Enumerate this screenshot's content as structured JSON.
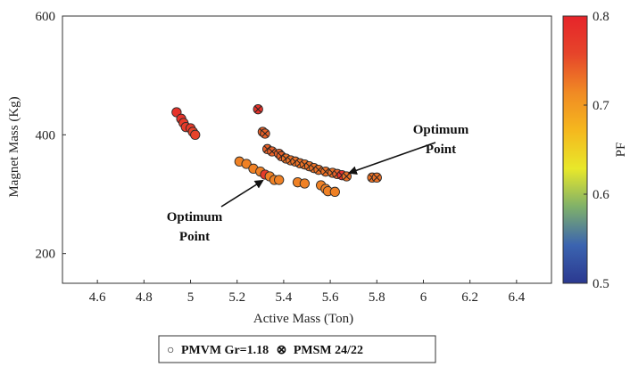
{
  "chart_data": {
    "type": "scatter",
    "xlabel": "Active Mass (Ton)",
    "ylabel": "Magnet  Mass (Kg)",
    "xlim": [
      4.45,
      6.55
    ],
    "ylim": [
      150,
      600
    ],
    "xticks": [
      4.6,
      4.8,
      5,
      5.2,
      5.4,
      5.6,
      5.8,
      6,
      6.2,
      6.4
    ],
    "xtick_labels": [
      "4.6",
      "4.8",
      "5",
      "5.2",
      "5.4",
      "5.6",
      "5.8",
      "6",
      "6.2",
      "6.4"
    ],
    "yticks": [
      200,
      400,
      600
    ],
    "ytick_labels": [
      "200",
      "400",
      "600"
    ],
    "grid": false,
    "colorbar": {
      "label": "PF",
      "range": [
        0.5,
        0.8
      ],
      "ticks": [
        "0.5",
        "0.6",
        "0.7",
        "0.8"
      ],
      "colormap": [
        "#2b3990",
        "#3b64b0",
        "#7fb06a",
        "#e8e82a",
        "#f5b81e",
        "#f08a24",
        "#e6452a",
        "#e6242a"
      ]
    },
    "legend": {
      "placement": "bottom",
      "marker_pmvm": "○",
      "marker_pmsm": "⊗",
      "entry_pmvm": "PMVM Gr=1.18",
      "entry_pmsm": "PMSM 24/22"
    },
    "series": [
      {
        "name": "PMVM Gr=1.18",
        "marker": "circle",
        "points": [
          {
            "x": 4.94,
            "y": 438,
            "pf": 0.78
          },
          {
            "x": 4.96,
            "y": 427,
            "pf": 0.78
          },
          {
            "x": 4.97,
            "y": 420,
            "pf": 0.77
          },
          {
            "x": 4.98,
            "y": 413,
            "pf": 0.77
          },
          {
            "x": 5.0,
            "y": 411,
            "pf": 0.77
          },
          {
            "x": 5.01,
            "y": 405,
            "pf": 0.76
          },
          {
            "x": 5.02,
            "y": 400,
            "pf": 0.76
          },
          {
            "x": 5.21,
            "y": 355,
            "pf": 0.72
          },
          {
            "x": 5.24,
            "y": 351,
            "pf": 0.72
          },
          {
            "x": 5.27,
            "y": 343,
            "pf": 0.72
          },
          {
            "x": 5.3,
            "y": 338,
            "pf": 0.72
          },
          {
            "x": 5.32,
            "y": 333,
            "pf": 0.77
          },
          {
            "x": 5.34,
            "y": 330,
            "pf": 0.72
          },
          {
            "x": 5.36,
            "y": 324,
            "pf": 0.72
          },
          {
            "x": 5.38,
            "y": 324,
            "pf": 0.72
          },
          {
            "x": 5.46,
            "y": 320,
            "pf": 0.72
          },
          {
            "x": 5.49,
            "y": 318,
            "pf": 0.72
          },
          {
            "x": 5.56,
            "y": 315,
            "pf": 0.72
          },
          {
            "x": 5.58,
            "y": 309,
            "pf": 0.72
          },
          {
            "x": 5.59,
            "y": 305,
            "pf": 0.72
          },
          {
            "x": 5.62,
            "y": 304,
            "pf": 0.72
          }
        ]
      },
      {
        "name": "PMSM 24/22",
        "marker": "circle-x",
        "points": [
          {
            "x": 5.29,
            "y": 443,
            "pf": 0.78
          },
          {
            "x": 5.31,
            "y": 405,
            "pf": 0.74
          },
          {
            "x": 5.32,
            "y": 402,
            "pf": 0.74
          },
          {
            "x": 5.33,
            "y": 376,
            "pf": 0.74
          },
          {
            "x": 5.35,
            "y": 372,
            "pf": 0.74
          },
          {
            "x": 5.38,
            "y": 368,
            "pf": 0.74
          },
          {
            "x": 5.39,
            "y": 364,
            "pf": 0.74
          },
          {
            "x": 5.41,
            "y": 360,
            "pf": 0.73
          },
          {
            "x": 5.43,
            "y": 357,
            "pf": 0.73
          },
          {
            "x": 5.45,
            "y": 355,
            "pf": 0.73
          },
          {
            "x": 5.47,
            "y": 352,
            "pf": 0.73
          },
          {
            "x": 5.49,
            "y": 350,
            "pf": 0.73
          },
          {
            "x": 5.51,
            "y": 347,
            "pf": 0.73
          },
          {
            "x": 5.53,
            "y": 344,
            "pf": 0.73
          },
          {
            "x": 5.55,
            "y": 341,
            "pf": 0.73
          },
          {
            "x": 5.58,
            "y": 338,
            "pf": 0.73
          },
          {
            "x": 5.61,
            "y": 336,
            "pf": 0.73
          },
          {
            "x": 5.63,
            "y": 334,
            "pf": 0.74
          },
          {
            "x": 5.65,
            "y": 332,
            "pf": 0.78
          },
          {
            "x": 5.67,
            "y": 330,
            "pf": 0.73
          },
          {
            "x": 5.78,
            "y": 328,
            "pf": 0.73
          },
          {
            "x": 5.8,
            "y": 328,
            "pf": 0.73
          }
        ]
      }
    ],
    "annotations": [
      {
        "line1": "Optimum",
        "line2": "Point",
        "target_x": 5.32,
        "target_y": 333
      },
      {
        "line1": "Optimum",
        "line2": "Point",
        "target_x": 5.66,
        "target_y": 330
      }
    ]
  }
}
